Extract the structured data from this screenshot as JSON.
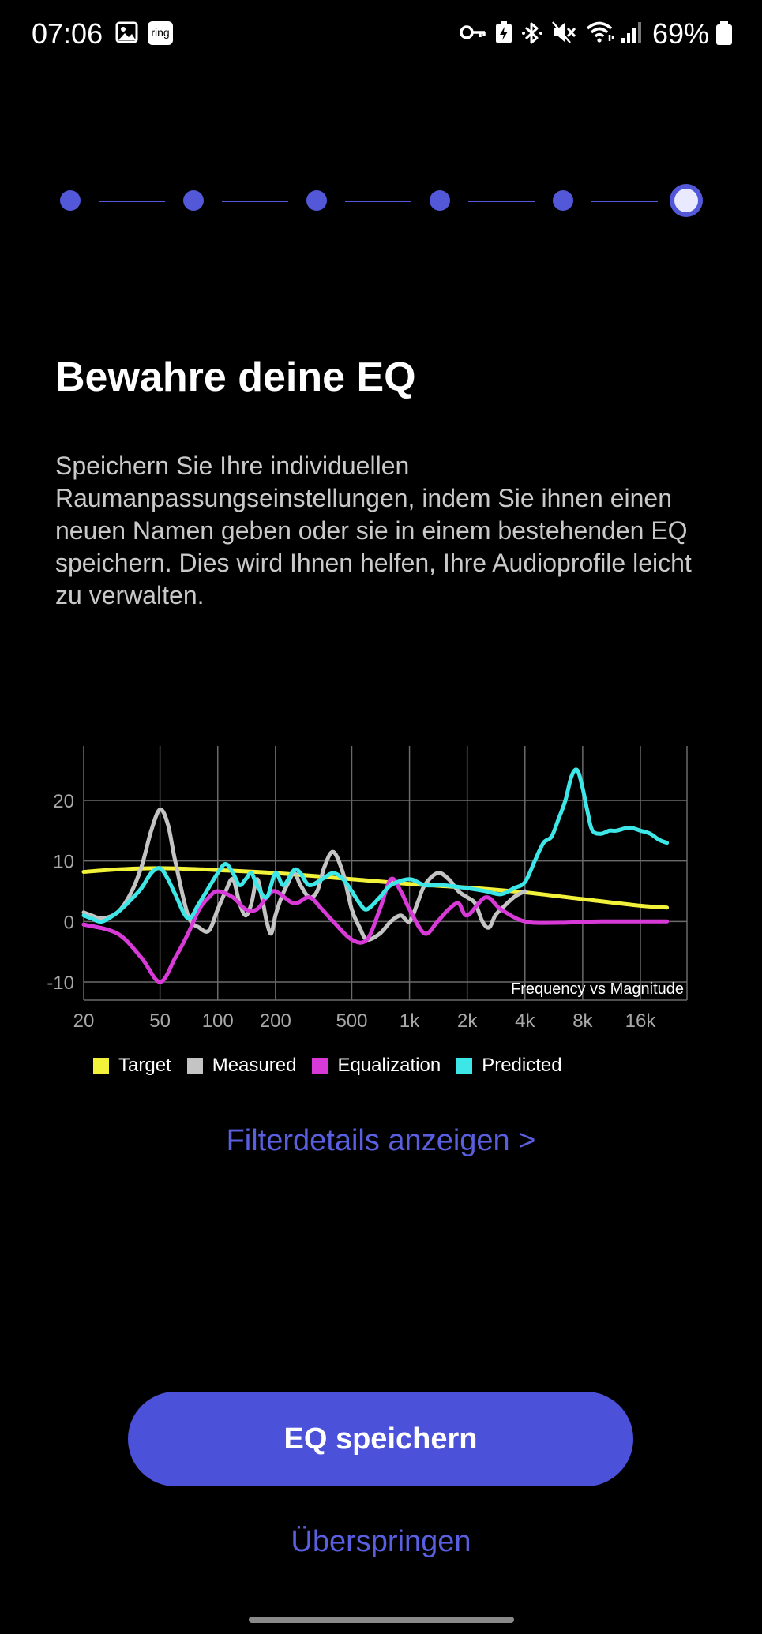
{
  "status_bar": {
    "time": "07:06",
    "notification_icons": [
      "image-icon",
      "ring-app-icon"
    ],
    "ring_label": "ring",
    "system_icons": [
      "vpn-key-icon",
      "battery-saver-icon",
      "bluetooth-icon",
      "mute-icon",
      "wifi-icon",
      "signal-icon"
    ],
    "battery_percent": "69%"
  },
  "stepper": {
    "total_steps": 6,
    "current_step": 6,
    "color": "#5358d8"
  },
  "heading": "Bewahre deine EQ",
  "description": "Speichern Sie Ihre individuellen Raumanpassungseinstellungen, indem Sie ihnen einen neuen Namen geben oder sie in einem bestehenden EQ speichern. Dies wird Ihnen helfen, Ihre Audioprofile leicht zu verwalten.",
  "chart_data": {
    "type": "line",
    "title": "Frequency vs Magnitude",
    "x_scale": "log",
    "xlim": [
      20,
      28000
    ],
    "ylim": [
      -13,
      29
    ],
    "x_ticks": [
      20,
      50,
      100,
      200,
      500,
      1000,
      2000,
      4000,
      8000,
      16000
    ],
    "x_tick_labels": [
      "20",
      "50",
      "100",
      "200",
      "500",
      "1k",
      "2k",
      "4k",
      "8k",
      "16k"
    ],
    "y_ticks": [
      20,
      10,
      0,
      -10
    ],
    "y_tick_labels": [
      "20",
      "10",
      "0",
      "-10"
    ],
    "grid": true,
    "series": [
      {
        "name": "Target",
        "color": "#f2f23a",
        "x": [
          20,
          30,
          50,
          100,
          200,
          500,
          1000,
          2000,
          4000,
          8000,
          16000,
          22000
        ],
        "y": [
          8.2,
          8.6,
          8.8,
          8.5,
          8.0,
          7.0,
          6.2,
          5.6,
          4.8,
          3.7,
          2.6,
          2.3
        ]
      },
      {
        "name": "Measured",
        "color": "#c4c4c4",
        "x": [
          20,
          22,
          25,
          30,
          35,
          40,
          45,
          50,
          55,
          60,
          70,
          80,
          90,
          100,
          110,
          120,
          130,
          140,
          150,
          160,
          170,
          180,
          190,
          200,
          215,
          230,
          250,
          270,
          300,
          330,
          360,
          400,
          450,
          500,
          550,
          600,
          700,
          800,
          900,
          1000,
          1100,
          1200,
          1400,
          1600,
          1800,
          2000,
          2200,
          2400,
          2600,
          2800,
          3000,
          3500,
          4000
        ],
        "y": [
          1.5,
          1.0,
          0.5,
          1.5,
          4.5,
          9,
          15,
          18.5,
          16,
          10,
          1,
          -1,
          -1.5,
          2,
          5,
          7,
          3,
          1,
          3,
          7,
          4,
          0,
          -2,
          1,
          4,
          6,
          8,
          6,
          4,
          5,
          9,
          11.5,
          8,
          2,
          -1,
          -3,
          -2,
          0,
          1,
          0,
          3,
          6,
          8,
          7,
          5,
          4,
          3,
          0,
          -1,
          1,
          2,
          4,
          5
        ]
      },
      {
        "name": "Equalization",
        "color": "#d83ad8",
        "x": [
          20,
          30,
          40,
          50,
          60,
          70,
          80,
          90,
          100,
          120,
          140,
          160,
          180,
          200,
          250,
          300,
          350,
          400,
          500,
          600,
          700,
          800,
          900,
          1000,
          1200,
          1400,
          1600,
          1800,
          2000,
          2500,
          3000,
          4000,
          6000,
          10000,
          22000
        ],
        "y": [
          -0.5,
          -2,
          -6,
          -10,
          -6,
          -2,
          2,
          4,
          5,
          4,
          2,
          2,
          4,
          5,
          3,
          4,
          2,
          0,
          -3,
          -3,
          2,
          7,
          5,
          2,
          -2,
          0,
          2,
          3,
          1,
          4,
          2,
          0,
          -0.2,
          0,
          0
        ]
      },
      {
        "name": "Predicted",
        "color": "#3ee7e7",
        "x": [
          20,
          22,
          25,
          30,
          35,
          40,
          45,
          50,
          55,
          60,
          70,
          80,
          100,
          110,
          120,
          130,
          140,
          150,
          160,
          180,
          200,
          220,
          250,
          270,
          300,
          350,
          400,
          450,
          500,
          550,
          600,
          700,
          800,
          1000,
          1200,
          1500,
          2000,
          2500,
          3000,
          3500,
          4000,
          4500,
          5000,
          5500,
          6000,
          6500,
          7000,
          7500,
          8000,
          8500,
          9000,
          10000,
          11000,
          12000,
          14000,
          16000,
          18000,
          20000,
          22000
        ],
        "y": [
          1.0,
          0.5,
          0.0,
          1.5,
          3.5,
          5.5,
          8,
          8.8,
          7,
          4.5,
          0.5,
          3,
          8,
          9.5,
          8,
          6,
          7,
          8,
          6,
          4,
          8,
          6,
          8.5,
          8,
          6,
          7,
          8,
          7,
          5,
          3,
          2,
          4,
          6,
          7,
          6,
          6,
          5.5,
          5,
          4.5,
          5.5,
          6.5,
          10,
          13,
          14,
          17,
          20,
          24,
          25,
          22,
          18,
          15,
          14.5,
          15,
          15,
          15.5,
          15,
          14.5,
          13.5,
          13
        ]
      }
    ]
  },
  "filter_link": "Filterdetails anzeigen >",
  "save_button": "EQ speichern",
  "skip_link": "Überspringen"
}
